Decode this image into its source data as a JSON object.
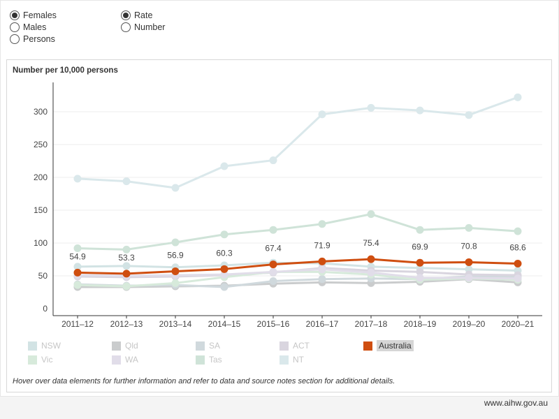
{
  "controls": {
    "sex_options": [
      {
        "label": "Females",
        "checked": true
      },
      {
        "label": "Males",
        "checked": false
      },
      {
        "label": "Persons",
        "checked": false
      }
    ],
    "measure_options": [
      {
        "label": "Rate",
        "checked": true
      },
      {
        "label": "Number",
        "checked": false
      }
    ]
  },
  "chart_subtitle": "Number per 10,000 persons",
  "footnote": "Hover over data elements for further information and refer to data and source notes section for additional details.",
  "footer_url": "www.aihw.gov.au",
  "chart_data": {
    "type": "line",
    "title": "",
    "ylabel": "Number per 10,000 persons",
    "xlabel": "",
    "ylim": [
      0,
      340
    ],
    "yticks": [
      0,
      50,
      100,
      150,
      200,
      250,
      300
    ],
    "grid": true,
    "legend_position": "bottom",
    "categories": [
      "2011–12",
      "2012–13",
      "2013–14",
      "2014–15",
      "2015–16",
      "2016–17",
      "2017–18",
      "2018–19",
      "2019–20",
      "2020–21"
    ],
    "highlighted_series": "Australia",
    "series": [
      {
        "name": "NSW",
        "color": "#d2e3e4",
        "values": [
          64,
          65,
          63,
          66,
          70,
          69,
          64,
          62,
          60,
          58
        ]
      },
      {
        "name": "Qld",
        "color": "#cacccd",
        "values": [
          33,
          33,
          34,
          35,
          38,
          40,
          39,
          41,
          45,
          40
        ]
      },
      {
        "name": "SA",
        "color": "#d0d9dd",
        "values": [
          37,
          35,
          36,
          33,
          42,
          45,
          46,
          45,
          49,
          48
        ]
      },
      {
        "name": "ACT",
        "color": "#d9d5df",
        "values": [
          49,
          48,
          49,
          51,
          55,
          62,
          58,
          56,
          52,
          51
        ]
      },
      {
        "name": "Vic",
        "color": "#d7eadb",
        "values": [
          36,
          34,
          39,
          48,
          56,
          56,
          52,
          44,
          46,
          44
        ]
      },
      {
        "name": "WA",
        "color": "#e1dde9",
        "values": [
          51,
          50,
          51,
          52,
          56,
          60,
          55,
          47,
          47,
          46
        ]
      },
      {
        "name": "Tas",
        "color": "#cfe3d8",
        "values": [
          92,
          90,
          101,
          113,
          120,
          129,
          144,
          120,
          123,
          118
        ]
      },
      {
        "name": "NT",
        "color": "#dae8eb",
        "values": [
          198,
          194,
          184,
          217,
          226,
          296,
          306,
          302,
          295,
          322
        ]
      },
      {
        "name": "Australia",
        "color": "#cf4e10",
        "values": [
          54.9,
          53.3,
          56.9,
          60.3,
          67.4,
          71.9,
          75.4,
          69.9,
          70.8,
          68.6
        ],
        "labels": [
          "54.9",
          "53.3",
          "56.9",
          "60.3",
          "67.4",
          "71.9",
          "75.4",
          "69.9",
          "70.8",
          "68.6"
        ]
      }
    ],
    "legend": [
      {
        "name": "NSW",
        "color": "#d2e3e4"
      },
      {
        "name": "Qld",
        "color": "#cacccd"
      },
      {
        "name": "SA",
        "color": "#d0d9dd"
      },
      {
        "name": "ACT",
        "color": "#d9d5df"
      },
      {
        "name": "Australia",
        "color": "#cf4e10"
      },
      {
        "name": "Vic",
        "color": "#d7eadb"
      },
      {
        "name": "WA",
        "color": "#e1dde9"
      },
      {
        "name": "Tas",
        "color": "#cfe3d8"
      },
      {
        "name": "NT",
        "color": "#dae8eb"
      }
    ]
  }
}
